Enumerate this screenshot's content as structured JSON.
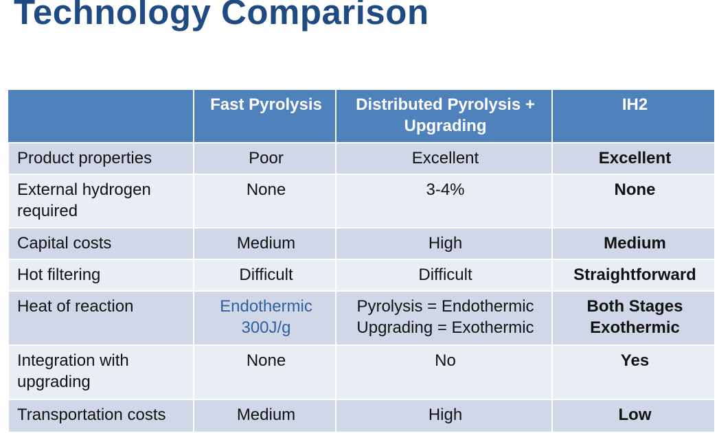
{
  "title": "Technology Comparison",
  "table": {
    "headers": [
      "",
      "Fast Pyrolysis",
      "Distributed Pyrolysis + Upgrading",
      "IH2"
    ],
    "rows": [
      {
        "label": "Product properties",
        "fast": "Poor",
        "dist": [
          "Excellent"
        ],
        "ih2": [
          "Excellent"
        ]
      },
      {
        "label": "External hydrogen required",
        "fast": "None",
        "dist": [
          "3-4%"
        ],
        "ih2": [
          "None"
        ]
      },
      {
        "label": "Capital costs",
        "fast": "Medium",
        "dist": [
          "High"
        ],
        "ih2": [
          "Medium"
        ]
      },
      {
        "label": "Hot filtering",
        "fast": "Difficult",
        "dist": [
          "Difficult"
        ],
        "ih2": [
          "Straightforward"
        ]
      },
      {
        "label": "Heat of reaction",
        "fast": "Endothermic 300J/g",
        "dist": [
          "Pyrolysis = Endothermic",
          "Upgrading = Exothermic"
        ],
        "ih2": [
          "Both Stages",
          "Exothermic"
        ]
      },
      {
        "label": "Integration with upgrading",
        "fast": "None",
        "dist": [
          "No"
        ],
        "ih2": [
          "Yes"
        ]
      },
      {
        "label": "Transportation costs",
        "fast": "Medium",
        "dist": [
          "High"
        ],
        "ih2": [
          "Low"
        ]
      }
    ]
  }
}
